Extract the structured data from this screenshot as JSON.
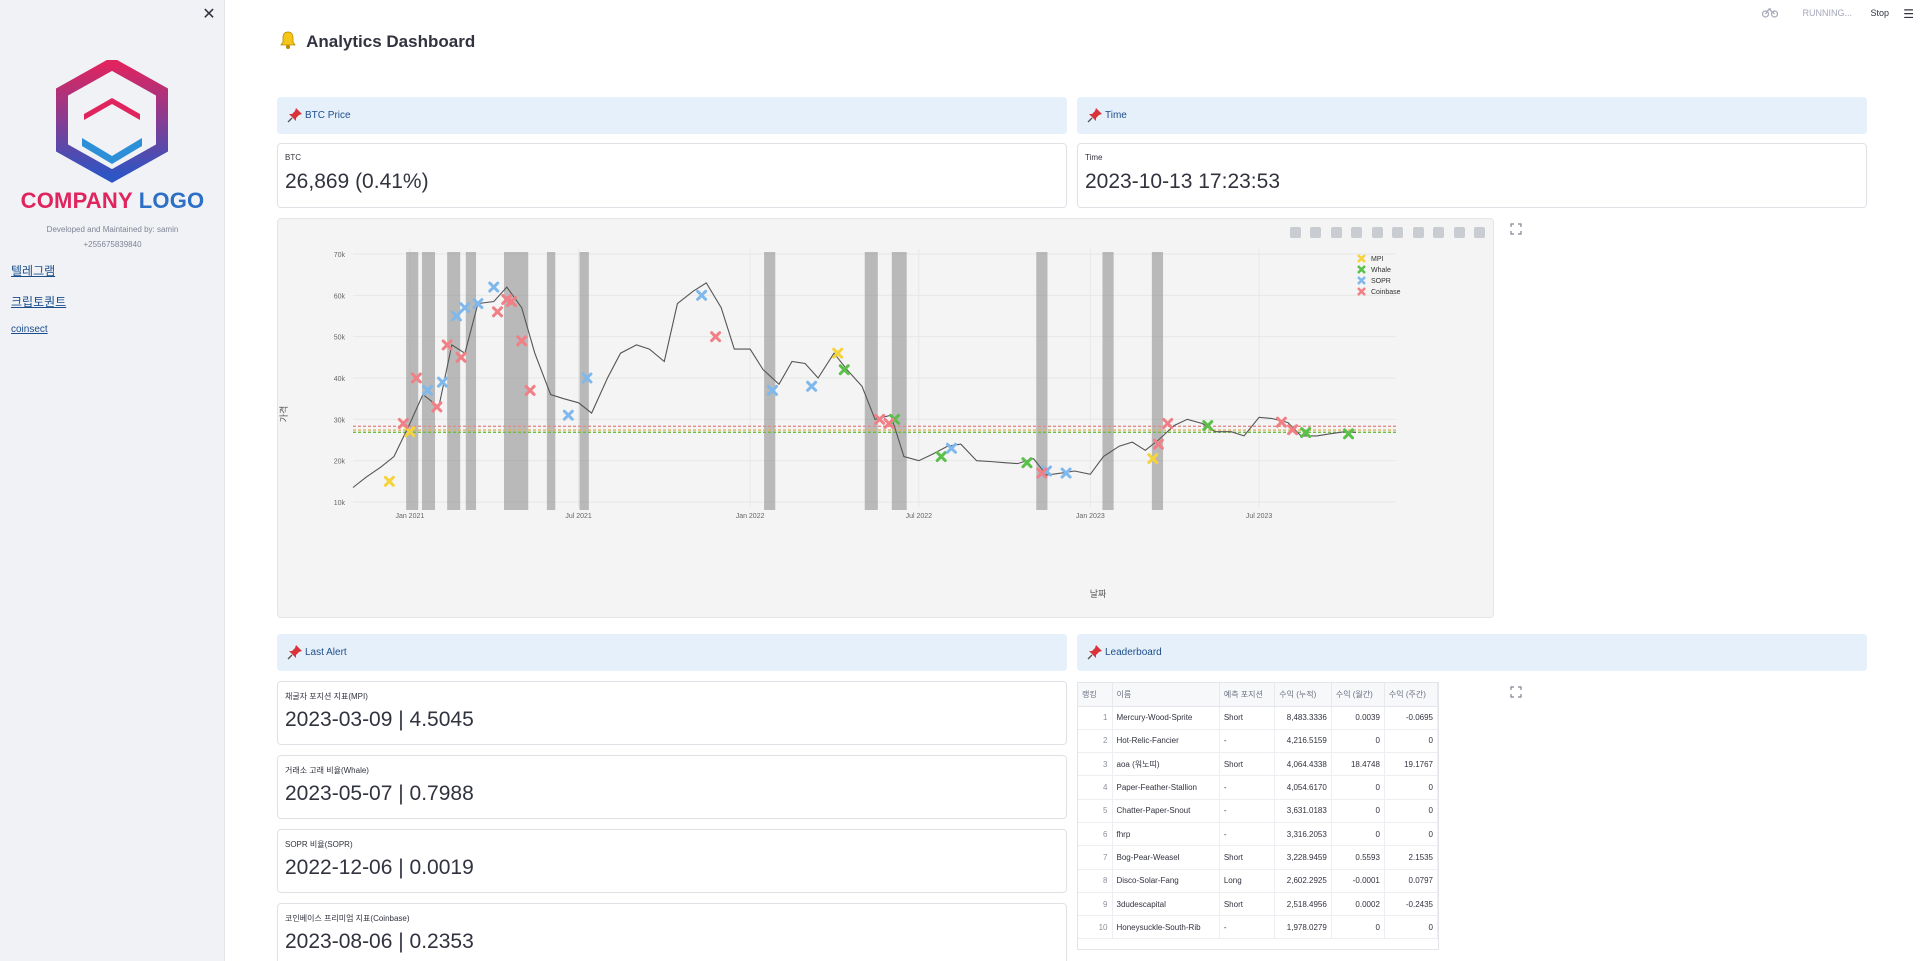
{
  "sidebar": {
    "logo_text_1": "COMPANY",
    "logo_text_2": "LOGO",
    "developed_by": "Developed and Maintained by: samin",
    "phone": "+255675839840",
    "links": [
      "텔레그램",
      "크립토퀀트",
      "coinsect"
    ]
  },
  "topbar": {
    "running": "RUNNING...",
    "stop": "Stop"
  },
  "header": {
    "title": "Analytics Dashboard"
  },
  "sections": {
    "btc_price": "BTC Price",
    "time": "Time",
    "last_alert": "Last Alert",
    "leaderboard": "Leaderboard"
  },
  "metrics": {
    "btc": {
      "label": "BTC",
      "value": "26,869 (0.41%)"
    },
    "time": {
      "label": "Time",
      "value": "2023-10-13 17:23:53"
    }
  },
  "alerts": [
    {
      "label": "채굴자 포지션 지표(MPI)",
      "value": "2023-03-09 | 4.5045"
    },
    {
      "label": "거래소 고래 비율(Whale)",
      "value": "2023-05-07 | 0.7988"
    },
    {
      "label": "SOPR 비율(SOPR)",
      "value": "2022-12-06 | 0.0019"
    },
    {
      "label": "코인베이스 프리미엄 지표(Coinbase)",
      "value": "2023-08-06 | 0.2353"
    }
  ],
  "leaderboard": {
    "columns": [
      "랭킹",
      "이름",
      "예측 포지션",
      "수익 (누적)",
      "수익 (월간)",
      "수익 (주간)"
    ],
    "rows": [
      [
        "1",
        "Mercury-Wood-Sprite",
        "Short",
        "8,483.3336",
        "0.0039",
        "-0.0695"
      ],
      [
        "2",
        "Hot-Relic-Fancier",
        "-",
        "4,216.5159",
        "0",
        "0"
      ],
      [
        "3",
        "aoa (워노띠)",
        "Short",
        "4,064.4338",
        "18.4748",
        "19.1767"
      ],
      [
        "4",
        "Paper-Feather-Stallion",
        "-",
        "4,054.6170",
        "0",
        "0"
      ],
      [
        "5",
        "Chatter-Paper-Snout",
        "-",
        "3,631.0183",
        "0",
        "0"
      ],
      [
        "6",
        "fhrp",
        "-",
        "3,316.2053",
        "0",
        "0"
      ],
      [
        "7",
        "Bog-Pear-Weasel",
        "Short",
        "3,228.9459",
        "0.5593",
        "2.1535"
      ],
      [
        "8",
        "Disco-Solar-Fang",
        "Long",
        "2,602.2925",
        "-0.0001",
        "0.0797"
      ],
      [
        "9",
        "3dudescapital",
        "Short",
        "2,518.4956",
        "0.0002",
        "-0.2435"
      ],
      [
        "10",
        "Honeysuckle-South-Rib",
        "-",
        "1,978.0279",
        "0",
        "0"
      ]
    ]
  },
  "chart_data": {
    "type": "line",
    "xlabel": "날짜",
    "ylabel": "가격",
    "x_ticks": [
      "Jan 2021",
      "Jul 2021",
      "Jan 2022",
      "Jul 2022",
      "Jan 2023",
      "Jul 2023"
    ],
    "y_ticks": [
      "10k",
      "20k",
      "30k",
      "40k",
      "50k",
      "60k",
      "70k"
    ],
    "ylim": [
      10000,
      70000
    ],
    "series": [
      {
        "name": "BTC",
        "color": "#555555",
        "x": [
          "2020-11-01",
          "2020-11-15",
          "2020-12-01",
          "2020-12-15",
          "2021-01-01",
          "2021-01-15",
          "2021-02-01",
          "2021-02-15",
          "2021-03-01",
          "2021-03-15",
          "2021-04-01",
          "2021-04-15",
          "2021-05-01",
          "2021-05-15",
          "2021-06-01",
          "2021-06-15",
          "2021-07-01",
          "2021-07-15",
          "2021-08-01",
          "2021-08-15",
          "2021-09-01",
          "2021-09-15",
          "2021-10-01",
          "2021-10-15",
          "2021-11-01",
          "2021-11-15",
          "2021-12-01",
          "2021-12-15",
          "2022-01-01",
          "2022-01-15",
          "2022-02-01",
          "2022-02-15",
          "2022-03-01",
          "2022-03-15",
          "2022-04-01",
          "2022-04-15",
          "2022-05-01",
          "2022-05-15",
          "2022-06-01",
          "2022-06-15",
          "2022-07-01",
          "2022-07-15",
          "2022-08-01",
          "2022-08-15",
          "2022-09-01",
          "2022-09-15",
          "2022-10-01",
          "2022-10-15",
          "2022-11-01",
          "2022-11-15",
          "2022-12-01",
          "2022-12-15",
          "2023-01-01",
          "2023-01-15",
          "2023-02-01",
          "2023-02-15",
          "2023-03-01",
          "2023-03-15",
          "2023-04-01",
          "2023-04-15",
          "2023-05-01",
          "2023-05-15",
          "2023-06-01",
          "2023-06-15",
          "2023-07-01",
          "2023-07-15",
          "2023-08-01",
          "2023-08-15",
          "2023-09-01",
          "2023-09-15",
          "2023-10-01",
          "2023-10-13"
        ],
        "values": [
          13500,
          16000,
          18500,
          21000,
          29000,
          36000,
          33000,
          48000,
          46000,
          58000,
          58500,
          62000,
          57000,
          46000,
          36000,
          35000,
          34000,
          31500,
          40000,
          46000,
          48000,
          47000,
          44000,
          58000,
          61000,
          63000,
          57000,
          47000,
          47000,
          42000,
          38500,
          44000,
          43500,
          40000,
          46000,
          42000,
          38000,
          30000,
          31000,
          21000,
          20000,
          21500,
          23500,
          24000,
          20000,
          19800,
          19500,
          19300,
          20500,
          16500,
          17000,
          17500,
          16700,
          21000,
          23500,
          24500,
          22500,
          25000,
          28500,
          30000,
          29000,
          27000,
          27000,
          26000,
          30500,
          30200,
          29200,
          26000,
          26000,
          26500,
          27000,
          26869
        ]
      }
    ],
    "signals": {
      "MPI": {
        "color": "#f5d33b",
        "x": [
          "2020-12-10",
          "2021-01-01",
          "2022-04-05",
          "2023-03-09"
        ],
        "y": [
          15000,
          27000,
          46000,
          20500
        ]
      },
      "Whale": {
        "color": "#5ac04a",
        "x": [
          "2022-04-12",
          "2022-06-05",
          "2022-07-25",
          "2022-10-25",
          "2023-05-07",
          "2023-08-20",
          "2023-10-05"
        ],
        "y": [
          42000,
          30000,
          21000,
          19500,
          28500,
          26800,
          26500
        ]
      },
      "SOPR": {
        "color": "#7fb8ec",
        "x": [
          "2021-01-20",
          "2021-02-05",
          "2021-02-20",
          "2021-03-01",
          "2021-03-15",
          "2021-04-01",
          "2021-06-20",
          "2021-07-10",
          "2021-11-10",
          "2022-01-25",
          "2022-03-08",
          "2022-08-05",
          "2022-11-15",
          "2022-12-06"
        ],
        "y": [
          37000,
          39000,
          55000,
          57000,
          58000,
          62000,
          31000,
          40000,
          60000,
          37000,
          38000,
          23000,
          17500,
          17000
        ]
      },
      "Coinbase": {
        "color": "#f07f86",
        "x": [
          "2020-12-25",
          "2021-01-08",
          "2021-01-30",
          "2021-02-10",
          "2021-02-25",
          "2021-04-05",
          "2021-04-15",
          "2021-04-20",
          "2021-05-01",
          "2021-05-10",
          "2021-11-25",
          "2022-05-20",
          "2022-05-30",
          "2022-11-10",
          "2023-03-15",
          "2023-03-25",
          "2023-07-25",
          "2023-08-06"
        ],
        "y": [
          29000,
          40000,
          33000,
          48000,
          45000,
          56000,
          59000,
          58500,
          49000,
          37000,
          50000,
          30000,
          29000,
          17000,
          24000,
          29000,
          29300,
          27500
        ]
      }
    },
    "hlines": [
      {
        "y": 28300,
        "color": "#e28b8b"
      },
      {
        "y": 27400,
        "color": "#e0b25a"
      },
      {
        "y": 26869,
        "color": "#6ebd45"
      }
    ],
    "shaded_ranges": [
      [
        "2020-12-28",
        "2021-01-10"
      ],
      [
        "2021-01-14",
        "2021-01-28"
      ],
      [
        "2021-02-10",
        "2021-02-24"
      ],
      [
        "2021-03-02",
        "2021-03-13"
      ],
      [
        "2021-04-12",
        "2021-05-08"
      ],
      [
        "2021-05-28",
        "2021-06-06"
      ],
      [
        "2021-07-02",
        "2021-07-12"
      ],
      [
        "2022-01-16",
        "2022-01-28"
      ],
      [
        "2022-05-04",
        "2022-05-18"
      ],
      [
        "2022-06-02",
        "2022-06-18"
      ],
      [
        "2022-11-04",
        "2022-11-16"
      ],
      [
        "2023-01-14",
        "2023-01-26"
      ],
      [
        "2023-03-08",
        "2023-03-20"
      ]
    ],
    "grid": true,
    "legend_position": "top-right"
  },
  "colors": {
    "accent": "#1c4e8c",
    "header_bg": "#e6f0fb"
  }
}
